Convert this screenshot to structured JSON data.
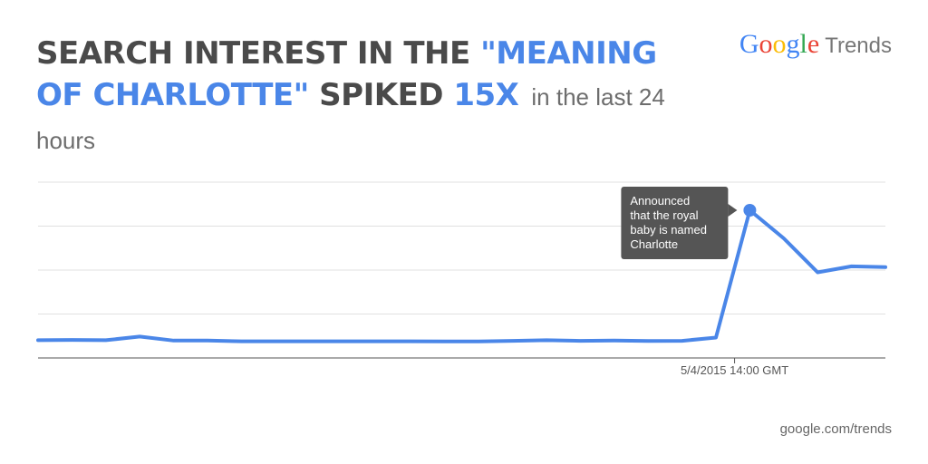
{
  "headline": {
    "part1": "SEARCH INTEREST IN THE ",
    "part2": "\"MEANING OF CHARLOTTE\"",
    "part3": " SPIKED ",
    "part4": "15X",
    "subtitle": "in the last 24 hours"
  },
  "brand": {
    "letters": [
      {
        "ch": "G",
        "color": "#4285f4"
      },
      {
        "ch": "o",
        "color": "#ea4335"
      },
      {
        "ch": "o",
        "color": "#fbbc05"
      },
      {
        "ch": "g",
        "color": "#4285f4"
      },
      {
        "ch": "l",
        "color": "#34a853"
      },
      {
        "ch": "e",
        "color": "#ea4335"
      }
    ],
    "product": "Trends"
  },
  "footer": "google.com/trends",
  "colors": {
    "line": "#4a86e8",
    "grid": "#e0e0e0",
    "axis": "#555555",
    "tooltip": "#555555"
  },
  "chart_data": {
    "type": "line",
    "values": [
      12,
      12.2,
      12,
      14.5,
      11.8,
      11.8,
      11.3,
      11.3,
      11.3,
      11.3,
      11.3,
      11.3,
      11.2,
      11.2,
      11.6,
      12,
      11.6,
      11.8,
      11.5,
      11.6,
      13.8,
      100,
      81,
      58,
      62,
      61.5
    ],
    "ylim": [
      0,
      100
    ],
    "grid_lines": 4,
    "x_tick": {
      "index": 20.55,
      "label": "5/4/2015 14:00 GMT"
    },
    "annotation": {
      "index": 21,
      "text": [
        "Announced",
        "that the royal",
        "baby is named",
        "Charlotte"
      ]
    }
  }
}
